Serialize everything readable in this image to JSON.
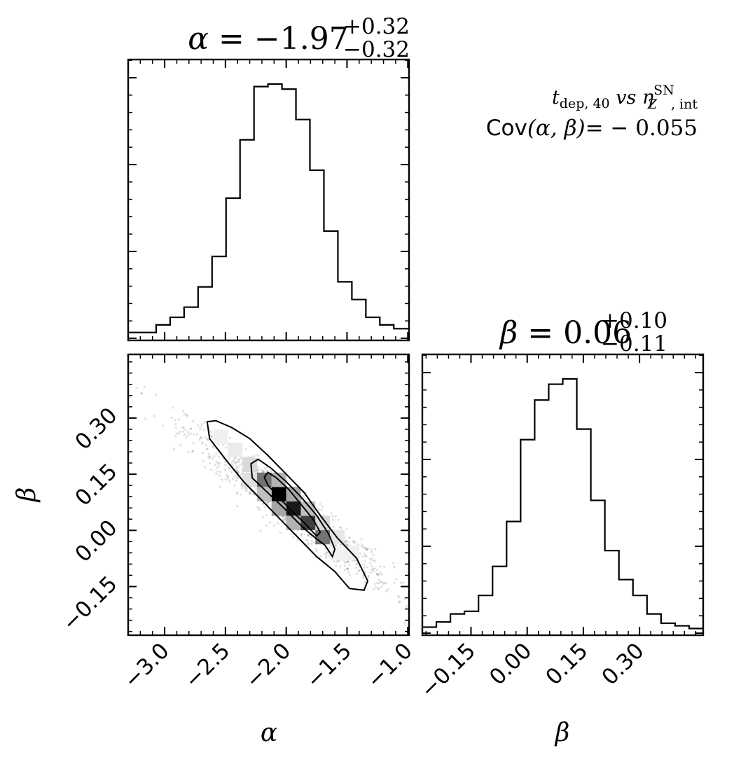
{
  "chart_data": [
    {
      "type": "histogram",
      "panel": "alpha-marginal",
      "title": {
        "param": "α",
        "value": "−1.97",
        "upper": "+0.32",
        "lower": "−0.32"
      },
      "xlim": [
        -3.3,
        -0.99
      ],
      "bin_edges": [
        -3.3,
        -3.185,
        -3.07,
        -2.955,
        -2.84,
        -2.725,
        -2.61,
        -2.495,
        -2.38,
        -2.265,
        -2.15,
        -2.035,
        -1.92,
        -1.805,
        -1.69,
        -1.575,
        -1.46,
        -1.345,
        -1.23,
        -1.115,
        -0.99
      ],
      "counts": [
        0.02,
        0.02,
        0.05,
        0.08,
        0.12,
        0.2,
        0.32,
        0.55,
        0.78,
        0.99,
        1.0,
        0.98,
        0.86,
        0.66,
        0.42,
        0.22,
        0.15,
        0.08,
        0.05,
        0.035
      ]
    },
    {
      "type": "scatter",
      "panel": "alpha-beta-2d",
      "xlabel": "α",
      "ylabel": "β",
      "xlim": [
        -3.3,
        -0.99
      ],
      "ylim": [
        -0.28,
        0.47
      ],
      "x_ticks": [
        "−3.0",
        "−2.5",
        "−2.0",
        "−1.5",
        "−1.0"
      ],
      "x_tick_values": [
        -3.0,
        -2.5,
        -2.0,
        -1.5,
        -1.0
      ],
      "y_ticks": [
        "−0.15",
        "0.00",
        "0.15",
        "0.30"
      ],
      "y_tick_values": [
        -0.15,
        0.0,
        0.15,
        0.3
      ],
      "correlation_center": {
        "alpha": -1.97,
        "beta": 0.06
      },
      "covariance": -0.055,
      "high_density_cells": [
        {
          "alpha": -2.06,
          "beta": 0.097,
          "level": 1.0
        },
        {
          "alpha": -1.94,
          "beta": 0.058,
          "level": 0.9
        },
        {
          "alpha": -1.82,
          "beta": 0.02,
          "level": 0.75
        },
        {
          "alpha": -2.18,
          "beta": 0.135,
          "level": 0.55
        },
        {
          "alpha": -1.7,
          "beta": -0.018,
          "level": 0.55
        },
        {
          "alpha": -1.94,
          "beta": 0.097,
          "level": 0.35
        },
        {
          "alpha": -2.06,
          "beta": 0.058,
          "level": 0.35
        },
        {
          "alpha": -1.82,
          "beta": 0.058,
          "level": 0.25
        },
        {
          "alpha": -2.18,
          "beta": 0.097,
          "level": 0.25
        },
        {
          "alpha": -1.94,
          "beta": 0.02,
          "level": 0.3
        },
        {
          "alpha": -2.06,
          "beta": 0.135,
          "level": 0.3
        },
        {
          "alpha": -2.3,
          "beta": 0.175,
          "level": 0.15
        },
        {
          "alpha": -2.3,
          "beta": 0.135,
          "level": 0.12
        },
        {
          "alpha": -1.7,
          "beta": 0.02,
          "level": 0.15
        },
        {
          "alpha": -1.58,
          "beta": -0.018,
          "level": 0.1
        },
        {
          "alpha": -2.42,
          "beta": 0.215,
          "level": 0.08
        },
        {
          "alpha": -2.54,
          "beta": 0.25,
          "level": 0.06
        },
        {
          "alpha": -1.46,
          "beta": -0.06,
          "level": 0.06
        },
        {
          "alpha": -1.58,
          "beta": -0.06,
          "level": 0.05
        }
      ],
      "contours": [
        [
          [
            -2.65,
            0.29
          ],
          [
            -2.63,
            0.245
          ],
          [
            -2.5,
            0.19
          ],
          [
            -2.35,
            0.13
          ],
          [
            -2.2,
            0.08
          ],
          [
            -2.05,
            0.03
          ],
          [
            -1.9,
            -0.02
          ],
          [
            -1.75,
            -0.07
          ],
          [
            -1.6,
            -0.11
          ],
          [
            -1.48,
            -0.155
          ],
          [
            -1.36,
            -0.16
          ],
          [
            -1.33,
            -0.135
          ],
          [
            -1.42,
            -0.075
          ],
          [
            -1.58,
            -0.02
          ],
          [
            -1.72,
            0.04
          ],
          [
            -1.85,
            0.1
          ],
          [
            -2.0,
            0.15
          ],
          [
            -2.15,
            0.2
          ],
          [
            -2.3,
            0.245
          ],
          [
            -2.45,
            0.275
          ],
          [
            -2.58,
            0.293
          ],
          [
            -2.65,
            0.29
          ]
        ],
        [
          [
            -2.29,
            0.178
          ],
          [
            -2.28,
            0.14
          ],
          [
            -2.15,
            0.1
          ],
          [
            -2.02,
            0.06
          ],
          [
            -1.9,
            0.02
          ],
          [
            -1.8,
            -0.01
          ],
          [
            -1.68,
            -0.04
          ],
          [
            -1.62,
            -0.07
          ],
          [
            -1.6,
            -0.05
          ],
          [
            -1.65,
            -0.01
          ],
          [
            -1.75,
            0.04
          ],
          [
            -1.88,
            0.09
          ],
          [
            -2.0,
            0.13
          ],
          [
            -2.12,
            0.165
          ],
          [
            -2.23,
            0.19
          ],
          [
            -2.29,
            0.178
          ]
        ],
        [
          [
            -2.18,
            0.142
          ],
          [
            -2.15,
            0.12
          ],
          [
            -2.05,
            0.085
          ],
          [
            -1.95,
            0.05
          ],
          [
            -1.85,
            0.02
          ],
          [
            -1.75,
            -0.015
          ],
          [
            -1.72,
            -0.005
          ],
          [
            -1.78,
            0.03
          ],
          [
            -1.88,
            0.07
          ],
          [
            -1.98,
            0.11
          ],
          [
            -2.08,
            0.14
          ],
          [
            -2.15,
            0.155
          ],
          [
            -2.18,
            0.142
          ]
        ]
      ]
    },
    {
      "type": "histogram",
      "panel": "beta-marginal",
      "title": {
        "param": "β",
        "value": "0.06",
        "upper": "+0.10",
        "lower": "−0.11"
      },
      "xlabel": "β",
      "xlim": [
        -0.28,
        0.47
      ],
      "x_ticks": [
        "−0.15",
        "0.00",
        "0.15",
        "0.30"
      ],
      "x_tick_values": [
        -0.15,
        0.0,
        0.15,
        0.3
      ],
      "bin_edges": [
        -0.28,
        -0.2425,
        -0.205,
        -0.1675,
        -0.13,
        -0.0925,
        -0.055,
        -0.0175,
        0.02,
        0.0575,
        0.095,
        0.1325,
        0.17,
        0.2075,
        0.245,
        0.2825,
        0.32,
        0.3575,
        0.395,
        0.4325,
        0.47
      ],
      "counts": [
        0.02,
        0.04,
        0.07,
        0.08,
        0.14,
        0.25,
        0.42,
        0.73,
        0.88,
        0.94,
        0.96,
        0.77,
        0.5,
        0.31,
        0.2,
        0.14,
        0.07,
        0.035,
        0.025,
        0.015
      ]
    }
  ],
  "annotation": {
    "line1_main": "t",
    "line1_sub": "dep, 40",
    "line1_vs": "vs",
    "line1_eta": "η",
    "line1_sup": "SN",
    "line1_subz": "Z",
    "line1_int": ", int",
    "line2_cov": "Cov",
    "line2_args": "(α, β)",
    "line2_value": "= − 0.055"
  }
}
